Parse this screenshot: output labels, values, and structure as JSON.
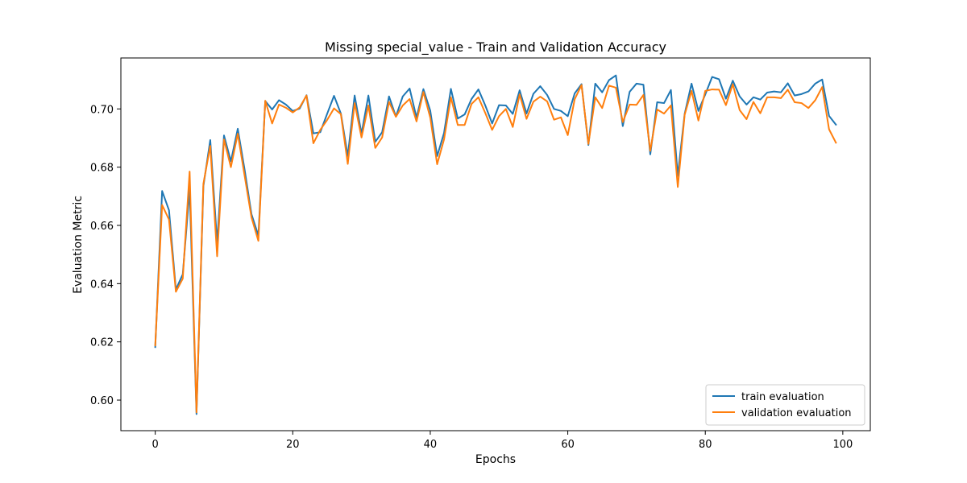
{
  "chart_data": {
    "type": "line",
    "title": "Missing special_value - Train and Validation Accuracy",
    "xlabel": "Epochs",
    "ylabel": "Evaluation Metric",
    "xlim": [
      -5,
      104
    ],
    "ylim": [
      0.5895,
      0.7175
    ],
    "xticks": [
      0,
      20,
      40,
      60,
      80,
      100
    ],
    "xtick_labels": [
      "0",
      "20",
      "40",
      "60",
      "80",
      "100"
    ],
    "yticks": [
      0.6,
      0.62,
      0.64,
      0.66,
      0.68,
      0.7
    ],
    "ytick_labels": [
      "0.60",
      "0.62",
      "0.64",
      "0.66",
      "0.68",
      "0.70"
    ],
    "grid": false,
    "legend_position": "lower-right",
    "x": [
      0,
      1,
      2,
      3,
      4,
      5,
      6,
      7,
      8,
      9,
      10,
      11,
      12,
      13,
      14,
      15,
      16,
      17,
      18,
      19,
      20,
      21,
      22,
      23,
      24,
      25,
      26,
      27,
      28,
      29,
      30,
      31,
      32,
      33,
      34,
      35,
      36,
      37,
      38,
      39,
      40,
      41,
      42,
      43,
      44,
      45,
      46,
      47,
      48,
      49,
      50,
      51,
      52,
      53,
      54,
      55,
      56,
      57,
      58,
      59,
      60,
      61,
      62,
      63,
      64,
      65,
      66,
      67,
      68,
      69,
      70,
      71,
      72,
      73,
      74,
      75,
      76,
      77,
      78,
      79,
      80,
      81,
      82,
      83,
      84,
      85,
      86,
      87,
      88,
      89,
      90,
      91,
      92,
      93,
      94,
      95,
      96,
      97,
      98,
      99
    ],
    "series": [
      {
        "name": "train evaluation",
        "color": "#1f77b4",
        "values": [
          0.6182,
          0.6718,
          0.6652,
          0.638,
          0.6432,
          0.6725,
          0.5952,
          0.6735,
          0.6893,
          0.654,
          0.6909,
          0.682,
          0.6932,
          0.6791,
          0.6638,
          0.6565,
          0.7027,
          0.6998,
          0.703,
          0.7015,
          0.6993,
          0.7001,
          0.7047,
          0.6916,
          0.692,
          0.6983,
          0.7045,
          0.6984,
          0.6838,
          0.7046,
          0.6915,
          0.7046,
          0.6887,
          0.692,
          0.7043,
          0.6974,
          0.7043,
          0.707,
          0.697,
          0.7068,
          0.6994,
          0.6838,
          0.6917,
          0.7069,
          0.6967,
          0.6981,
          0.7034,
          0.7067,
          0.7012,
          0.695,
          0.7013,
          0.7012,
          0.6983,
          0.7064,
          0.6984,
          0.7052,
          0.7078,
          0.7048,
          0.7,
          0.6993,
          0.6975,
          0.7053,
          0.7085,
          0.6876,
          0.7087,
          0.7057,
          0.7099,
          0.7115,
          0.6941,
          0.7059,
          0.7087,
          0.7083,
          0.6844,
          0.7023,
          0.702,
          0.7065,
          0.677,
          0.6983,
          0.7087,
          0.6993,
          0.705,
          0.711,
          0.7102,
          0.7035,
          0.7097,
          0.7043,
          0.7015,
          0.704,
          0.7032,
          0.7056,
          0.706,
          0.7057,
          0.7088,
          0.7046,
          0.7051,
          0.706,
          0.7087,
          0.7101,
          0.6976,
          0.6946
        ]
      },
      {
        "name": "validation evaluation",
        "color": "#ff7f0e",
        "values": [
          0.6188,
          0.667,
          0.662,
          0.6372,
          0.6417,
          0.6785,
          0.5958,
          0.6743,
          0.6873,
          0.6494,
          0.6895,
          0.68,
          0.6915,
          0.677,
          0.6627,
          0.6547,
          0.7028,
          0.695,
          0.7015,
          0.7004,
          0.6988,
          0.7005,
          0.7046,
          0.6882,
          0.6928,
          0.6962,
          0.7002,
          0.6982,
          0.6811,
          0.702,
          0.6902,
          0.7012,
          0.6866,
          0.6902,
          0.7024,
          0.6973,
          0.7012,
          0.7034,
          0.6957,
          0.7058,
          0.697,
          0.681,
          0.6895,
          0.704,
          0.6945,
          0.6945,
          0.7017,
          0.704,
          0.6986,
          0.6928,
          0.6975,
          0.7,
          0.6938,
          0.705,
          0.6966,
          0.7025,
          0.7042,
          0.7026,
          0.6963,
          0.6971,
          0.691,
          0.7033,
          0.7082,
          0.688,
          0.704,
          0.7003,
          0.708,
          0.7073,
          0.6955,
          0.7015,
          0.7014,
          0.7048,
          0.6856,
          0.6998,
          0.6984,
          0.7012,
          0.6732,
          0.698,
          0.7062,
          0.696,
          0.7062,
          0.7067,
          0.7066,
          0.7013,
          0.7085,
          0.6996,
          0.6965,
          0.7024,
          0.6985,
          0.704,
          0.704,
          0.7037,
          0.7066,
          0.7023,
          0.702,
          0.7003,
          0.703,
          0.7075,
          0.693,
          0.6884
        ]
      }
    ]
  }
}
